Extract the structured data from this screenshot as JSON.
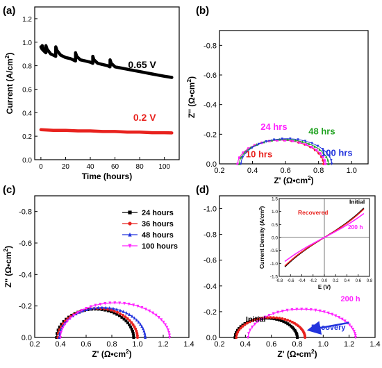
{
  "figure": {
    "panel_labels": [
      "(a)",
      "(b)",
      "(c)",
      "(d)"
    ]
  },
  "chart_data": [
    {
      "panel": "(a)",
      "type": "line",
      "title": "",
      "xlabel": "Time (hours)",
      "ylabel": "Current (A/cm²)",
      "xlim": [
        -5,
        112
      ],
      "ylim": [
        0,
        1.3
      ],
      "xticks": [
        0,
        20,
        40,
        60,
        80,
        100
      ],
      "yticks": [
        0.0,
        0.2,
        0.4,
        0.6,
        0.8,
        1.0,
        1.2
      ],
      "series": [
        {
          "name": "0.65 V",
          "color": "#000000",
          "x": [
            0,
            1,
            1.05,
            2,
            4,
            4.05,
            5,
            8,
            10,
            12,
            12.05,
            13,
            16,
            20,
            24,
            28,
            28.05,
            29,
            32,
            36,
            40,
            42,
            42.05,
            43,
            46,
            50,
            54,
            56,
            56.05,
            57,
            60,
            65,
            70,
            75,
            80,
            85,
            90,
            95,
            100,
            106
          ],
          "y": [
            0.96,
            0.94,
            0.97,
            0.93,
            0.91,
            0.97,
            0.94,
            0.9,
            0.89,
            0.88,
            0.96,
            0.93,
            0.89,
            0.87,
            0.86,
            0.84,
            0.91,
            0.88,
            0.85,
            0.84,
            0.83,
            0.82,
            0.88,
            0.85,
            0.82,
            0.81,
            0.8,
            0.79,
            0.85,
            0.82,
            0.79,
            0.78,
            0.77,
            0.76,
            0.75,
            0.74,
            0.73,
            0.72,
            0.71,
            0.7
          ]
        },
        {
          "name": "0.2 V",
          "color": "#e8221e",
          "x": [
            0,
            10,
            20,
            30,
            40,
            50,
            60,
            70,
            80,
            90,
            100,
            106
          ],
          "y": [
            0.255,
            0.25,
            0.25,
            0.245,
            0.245,
            0.24,
            0.24,
            0.235,
            0.235,
            0.23,
            0.23,
            0.228
          ]
        }
      ],
      "annotations": [
        {
          "text": "0.65 V",
          "x": 82,
          "y": 0.78,
          "color": "#000000"
        },
        {
          "text": "0.2 V",
          "x": 84,
          "y": 0.33,
          "color": "#e8221e"
        }
      ]
    },
    {
      "panel": "(b)",
      "type": "scatter",
      "title": "",
      "xlabel": "Z' (Ω•cm²)",
      "ylabel": "Z'' (Ω•cm²)",
      "xlim": [
        0.2,
        1.1
      ],
      "ylim": [
        0,
        -0.9
      ],
      "xticks": [
        0.2,
        0.4,
        0.6,
        0.8,
        1.0
      ],
      "yticks": [
        0.0,
        -0.2,
        -0.4,
        -0.6,
        -0.8
      ],
      "series": [
        {
          "name": "10 hrs",
          "color": "#e8221e",
          "x_start": 0.31,
          "x_end": 0.83,
          "peak": -0.16
        },
        {
          "name": "24 hrs",
          "color": "#ff22ff",
          "x_start": 0.31,
          "x_end": 0.84,
          "peak": -0.16
        },
        {
          "name": "48 hrs",
          "color": "#22a322",
          "x_start": 0.32,
          "x_end": 0.86,
          "peak": -0.165
        },
        {
          "name": "100 hrs",
          "color": "#2233dd",
          "x_start": 0.33,
          "x_end": 0.88,
          "peak": -0.17
        }
      ],
      "annotations": [
        {
          "text": "24 hrs",
          "x": 0.53,
          "y": -0.23,
          "color": "#ff22ff"
        },
        {
          "text": "48 hrs",
          "x": 0.82,
          "y": -0.2,
          "color": "#22a322"
        },
        {
          "text": "10 hrs",
          "x": 0.44,
          "y": -0.045,
          "color": "#e8221e"
        },
        {
          "text": "100 hrs",
          "x": 0.91,
          "y": -0.055,
          "color": "#2233dd"
        }
      ]
    },
    {
      "panel": "(c)",
      "type": "scatter",
      "title": "",
      "xlabel": "Z' (Ω•cm²)",
      "ylabel": "Z'' (Ω•cm²)",
      "xlim": [
        0.2,
        1.4
      ],
      "ylim": [
        0,
        -0.9
      ],
      "xticks": [
        0.2,
        0.4,
        0.6,
        0.8,
        1.0,
        1.2,
        1.4
      ],
      "yticks": [
        0.0,
        -0.2,
        -0.4,
        -0.6,
        -0.8
      ],
      "legend": "top-right",
      "series": [
        {
          "name": "24 hours",
          "color": "#000000",
          "x_start": 0.37,
          "x_end": 0.97,
          "peak": -0.18
        },
        {
          "name": "36 hours",
          "color": "#e8221e",
          "x_start": 0.38,
          "x_end": 1.0,
          "peak": -0.185
        },
        {
          "name": "48 hours",
          "color": "#2233dd",
          "x_start": 0.39,
          "x_end": 1.06,
          "peak": -0.19
        },
        {
          "name": "100 hours",
          "color": "#ff22ff",
          "x_start": 0.4,
          "x_end": 1.25,
          "peak": -0.22
        }
      ]
    },
    {
      "panel": "(d)",
      "type": "scatter",
      "title": "",
      "xlabel": "Z' (Ω•cm²)",
      "ylabel": "",
      "xlim": [
        0.2,
        1.4
      ],
      "ylim": [
        0,
        -1.1
      ],
      "xticks": [
        0.2,
        0.4,
        0.6,
        0.8,
        1.0,
        1.2,
        1.4
      ],
      "yticks": [
        0.0,
        -0.2,
        -0.4,
        -0.6,
        -0.8,
        -1.0
      ],
      "series": [
        {
          "name": "Initial",
          "color": "#000000",
          "x_start": 0.32,
          "x_end": 0.8,
          "peak": -0.15
        },
        {
          "name": "Recovery",
          "color": "#e8221e",
          "x_start": 0.33,
          "x_end": 0.86,
          "peak": -0.155
        },
        {
          "name": "200 h",
          "color": "#ff22ff",
          "x_start": 0.42,
          "x_end": 1.25,
          "peak": -0.22
        }
      ],
      "annotations": [
        {
          "text": "Initial",
          "x": 0.48,
          "y": -0.12,
          "color": "#000000"
        },
        {
          "text": "Recovery",
          "x": 1.04,
          "y": -0.06,
          "color": "#2233dd"
        },
        {
          "text": "200 h",
          "x": 1.21,
          "y": -0.28,
          "color": "#ff22ff"
        }
      ],
      "inset": {
        "type": "line",
        "xlabel": "E (V)",
        "ylabel": "Current Density (A/cm²)",
        "xlim": [
          -0.8,
          0.8
        ],
        "ylim": [
          -1.5,
          1.5
        ],
        "xticks": [
          -0.8,
          -0.6,
          -0.4,
          -0.2,
          0.0,
          0.2,
          0.4,
          0.6,
          0.8
        ],
        "yticks": [
          -1.5,
          -1.0,
          -0.5,
          0.0,
          0.5,
          1.0,
          1.5
        ],
        "series": [
          {
            "name": "Initial",
            "color": "#000000",
            "slope": 1.35,
            "curv": 0.55
          },
          {
            "name": "Recovered",
            "color": "#e8221e",
            "slope": 1.3,
            "curv": 0.55
          },
          {
            "name": "200 h",
            "color": "#ff22ff",
            "slope": 1.15,
            "curv": 0.35
          }
        ],
        "labels": [
          {
            "text": "Initial",
            "x": 0.58,
            "y": 1.3,
            "color": "#000000"
          },
          {
            "text": "Recovered",
            "x": -0.2,
            "y": 0.88,
            "color": "#e8221e"
          },
          {
            "text": "200 h",
            "x": 0.55,
            "y": 0.32,
            "color": "#ff22ff"
          }
        ]
      }
    }
  ]
}
